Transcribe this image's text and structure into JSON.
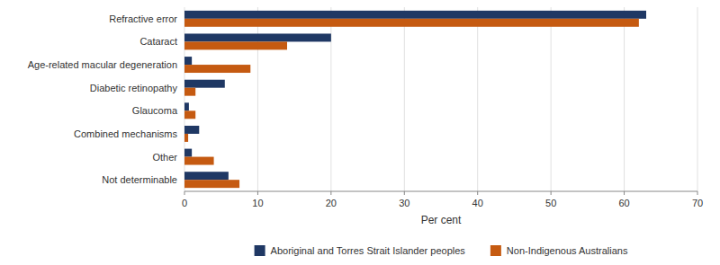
{
  "chart_data": {
    "type": "bar",
    "orientation": "horizontal",
    "categories": [
      "Refractive error",
      "Cataract",
      "Age-related macular degeneration",
      "Diabetic retinopathy",
      "Glaucoma",
      "Combined mechanisms",
      "Other",
      "Not determinable"
    ],
    "series": [
      {
        "name": "Aboriginal and Torres Strait Islander peoples",
        "color": "#1F3864",
        "values": [
          63,
          20,
          1,
          5.5,
          0.6,
          2,
          1,
          6
        ]
      },
      {
        "name": "Non-Indigenous Australians",
        "color": "#C55A11",
        "values": [
          62,
          14,
          9,
          1.5,
          1.5,
          0.5,
          4,
          7.5
        ]
      }
    ],
    "xlabel": "Per cent",
    "xlim": [
      0,
      70
    ],
    "xticks": [
      0,
      10,
      20,
      30,
      40,
      50,
      60,
      70
    ],
    "grid": true,
    "legend": "bottom"
  }
}
